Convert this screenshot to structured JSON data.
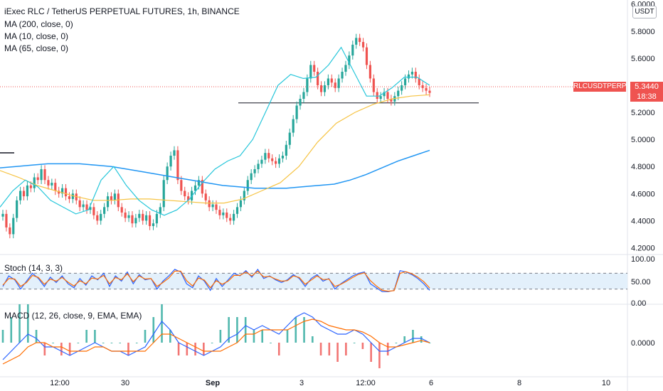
{
  "header": {
    "title": "iExec RLC / TetherUS PERPETUAL FUTURES, 1h, BINANCE",
    "indicators": [
      "MA (200, close, 0)",
      "MA (10, close, 0)",
      "MA (65, close, 0)"
    ]
  },
  "price_axis": {
    "currency": "USDT",
    "ticks": [
      "6.0000",
      "5.8000",
      "5.6000",
      "5.4000",
      "5.2000",
      "5.0000",
      "4.8000",
      "4.6000",
      "4.4000",
      "4.2000"
    ]
  },
  "last_price": {
    "symbol": "RLCUSDTPERP",
    "price": "5.3440",
    "countdown": "18:38"
  },
  "stoch": {
    "label": "Stoch (14, 3, 3)",
    "ticks": [
      "100.00",
      "50.00",
      "0.00"
    ]
  },
  "macd": {
    "label": "MACD (12, 26, close, 9, EMA, EMA)",
    "ticks": [
      "0.0000"
    ]
  },
  "time_axis": {
    "labels": [
      "12:00",
      "30",
      "Sep",
      "3",
      "12:00",
      "6",
      "8",
      "10"
    ]
  },
  "colors": {
    "up": "#26a69a",
    "down": "#ef5350",
    "ma200": "#2196f3",
    "ma10": "#26c6da",
    "ma65": "#f6c342",
    "stoch_k": "#2962ff",
    "stoch_d": "#ff6d00",
    "band_fill": "#e3f0fb",
    "macd_line": "#2962ff",
    "signal_line": "#ff6d00"
  },
  "chart_data": [
    {
      "type": "line",
      "title": "iExec RLC / TetherUS PERPETUAL FUTURES, 1h, BINANCE",
      "series_note_none": "",
      "ylim": [
        4.15,
        6.03
      ],
      "candles_close": [
        4.45,
        4.35,
        4.3,
        4.42,
        4.55,
        4.62,
        4.58,
        4.66,
        4.64,
        4.72,
        4.7,
        4.78,
        4.7,
        4.66,
        4.68,
        4.62,
        4.6,
        4.64,
        4.58,
        4.56,
        4.6,
        4.55,
        4.5,
        4.52,
        4.48,
        4.5,
        4.44,
        4.4,
        4.45,
        4.5,
        4.58,
        4.55,
        4.6,
        4.5,
        4.46,
        4.42,
        4.44,
        4.38,
        4.42,
        4.45,
        4.4,
        4.44,
        4.36,
        4.38,
        4.45,
        4.5,
        4.7,
        4.8,
        4.88,
        4.92,
        4.7,
        4.62,
        4.58,
        4.55,
        4.62,
        4.66,
        4.7,
        4.6,
        4.55,
        4.5,
        4.52,
        4.48,
        4.44,
        4.46,
        4.42,
        4.4,
        4.45,
        4.5,
        4.55,
        4.62,
        4.7,
        4.75,
        4.78,
        4.82,
        4.85,
        4.9,
        4.86,
        4.84,
        4.82,
        4.86,
        4.88,
        4.96,
        5.05,
        5.15,
        5.25,
        5.3,
        5.35,
        5.45,
        5.55,
        5.5,
        5.4,
        5.35,
        5.4,
        5.45,
        5.42,
        5.38,
        5.45,
        5.5,
        5.55,
        5.62,
        5.7,
        5.75,
        5.72,
        5.68,
        5.55,
        5.45,
        5.35,
        5.3,
        5.32,
        5.35,
        5.3,
        5.28,
        5.32,
        5.36,
        5.4,
        5.45,
        5.48,
        5.5,
        5.45,
        5.4,
        5.38,
        5.36,
        5.344
      ],
      "ma200": [
        4.79,
        4.8,
        4.81,
        4.82,
        4.82,
        4.82,
        4.81,
        4.8,
        4.78,
        4.76,
        4.74,
        4.72,
        4.7,
        4.68,
        4.66,
        4.65,
        4.64,
        4.64,
        4.64,
        4.65,
        4.66,
        4.67,
        4.7,
        4.74,
        4.79,
        4.84,
        4.88,
        4.92
      ],
      "ma65": [
        4.77,
        4.72,
        4.66,
        4.62,
        4.58,
        4.55,
        4.55,
        4.56,
        4.56,
        4.55,
        4.54,
        4.53,
        4.53,
        4.56,
        4.62,
        4.68,
        4.8,
        4.98,
        5.12,
        5.2,
        5.26,
        5.3,
        5.32,
        5.33
      ],
      "ma10": [
        4.5,
        4.62,
        4.7,
        4.65,
        4.55,
        4.5,
        4.45,
        4.48,
        4.7,
        4.8,
        4.66,
        4.55,
        4.48,
        4.44,
        4.48,
        4.56,
        4.68,
        4.78,
        4.84,
        4.88,
        5.0,
        5.2,
        5.4,
        5.48,
        5.45,
        5.46,
        5.55,
        5.68,
        5.5,
        5.32,
        5.32,
        5.38,
        5.46,
        5.46,
        5.4
      ],
      "reference_line": 5.27,
      "marker_line": 4.84
    },
    {
      "type": "line",
      "title": "Stoch (14, 3, 3)",
      "ylim": [
        0,
        100
      ],
      "band": [
        20,
        80
      ],
      "k": [
        30,
        70,
        55,
        20,
        50,
        80,
        60,
        30,
        65,
        45,
        70,
        40,
        25,
        60,
        35,
        70,
        55,
        80,
        30,
        70,
        50,
        85,
        40,
        75,
        55,
        60,
        20,
        50,
        70,
        95,
        85,
        40,
        25,
        70,
        50,
        15,
        60,
        30,
        55,
        80,
        70,
        90,
        65,
        95,
        60,
        70,
        55,
        45,
        55,
        75,
        60,
        30,
        60,
        75,
        50,
        60,
        20,
        40,
        55,
        70,
        80,
        85,
        40,
        25,
        10,
        10,
        15,
        90,
        85,
        75,
        60,
        40,
        15
      ],
      "d": [
        35,
        60,
        58,
        30,
        45,
        72,
        64,
        38,
        58,
        50,
        64,
        46,
        32,
        52,
        40,
        62,
        58,
        72,
        40,
        64,
        55,
        78,
        48,
        70,
        58,
        60,
        30,
        45,
        62,
        88,
        88,
        52,
        32,
        62,
        54,
        25,
        52,
        38,
        50,
        72,
        72,
        85,
        70,
        88,
        66,
        68,
        58,
        50,
        52,
        70,
        64,
        38,
        54,
        70,
        56,
        58,
        30,
        38,
        50,
        64,
        76,
        82,
        52,
        32,
        15,
        12,
        14,
        80,
        86,
        78,
        65,
        48,
        24
      ]
    },
    {
      "type": "bar",
      "title": "MACD (12, 26, close, 9, EMA, EMA)",
      "ylim": [
        -0.09,
        0.08
      ],
      "macd": [
        -0.04,
        -0.02,
        0.0,
        0.02,
        0.01,
        -0.01,
        -0.01,
        -0.02,
        -0.03,
        -0.02,
        -0.01,
        0.0,
        -0.01,
        -0.02,
        -0.02,
        -0.03,
        -0.02,
        -0.01,
        0.02,
        0.05,
        0.03,
        0.0,
        -0.01,
        -0.02,
        -0.03,
        -0.02,
        -0.01,
        0.01,
        0.02,
        0.04,
        0.03,
        0.04,
        0.03,
        0.02,
        0.04,
        0.06,
        0.07,
        0.06,
        0.04,
        0.03,
        0.02,
        0.02,
        0.03,
        0.02,
        0.0,
        -0.02,
        -0.02,
        -0.01,
        0.0,
        0.01,
        0.01,
        0.0
      ],
      "signal": [
        -0.05,
        -0.04,
        -0.03,
        -0.01,
        0.0,
        0.0,
        -0.01,
        -0.01,
        -0.02,
        -0.02,
        -0.02,
        -0.01,
        -0.01,
        -0.02,
        -0.02,
        -0.02,
        -0.02,
        -0.02,
        0.0,
        0.02,
        0.02,
        0.01,
        0.0,
        -0.01,
        -0.02,
        -0.02,
        -0.02,
        -0.01,
        0.0,
        0.02,
        0.02,
        0.03,
        0.03,
        0.03,
        0.03,
        0.04,
        0.05,
        0.055,
        0.05,
        0.04,
        0.035,
        0.03,
        0.03,
        0.025,
        0.015,
        0.0,
        -0.01,
        -0.01,
        -0.005,
        0.0,
        0.005,
        0.0
      ]
    }
  ]
}
